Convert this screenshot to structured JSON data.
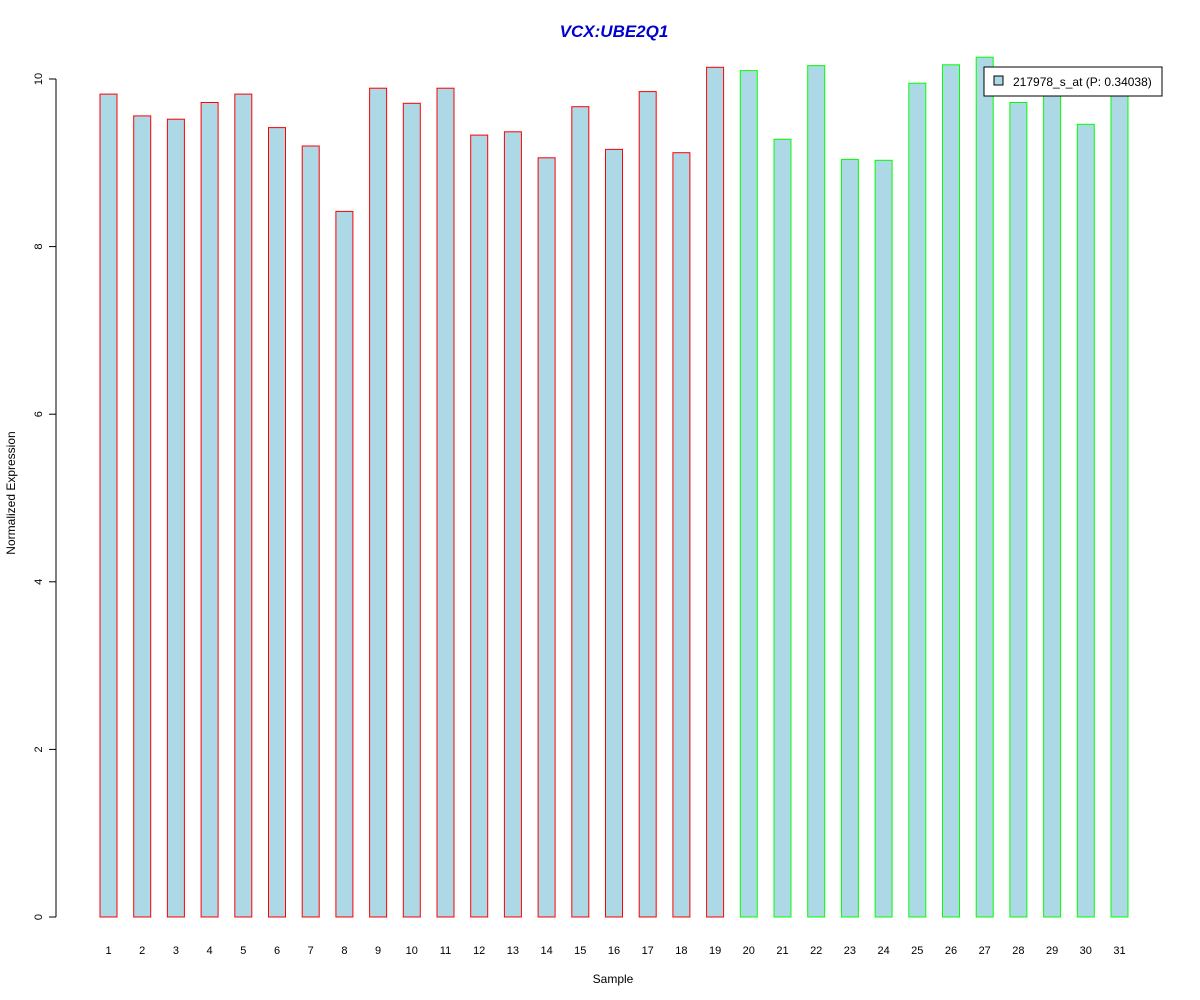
{
  "chart_data": {
    "type": "bar",
    "title": "VCX:UBE2Q1",
    "xlabel": "Sample",
    "ylabel": "Normalized Expression",
    "categories": [
      "1",
      "2",
      "3",
      "4",
      "5",
      "6",
      "7",
      "8",
      "9",
      "10",
      "11",
      "12",
      "13",
      "14",
      "15",
      "16",
      "17",
      "18",
      "19",
      "20",
      "21",
      "22",
      "23",
      "24",
      "25",
      "26",
      "27",
      "28",
      "29",
      "30",
      "31"
    ],
    "series": [
      {
        "name": "217978_s_at (P: 0.34038)",
        "values": [
          9.82,
          9.56,
          9.52,
          9.72,
          9.82,
          9.42,
          9.2,
          8.42,
          9.89,
          9.71,
          9.89,
          9.33,
          9.37,
          9.06,
          9.67,
          9.16,
          9.85,
          9.12,
          10.14,
          10.1,
          9.28,
          10.16,
          9.04,
          9.03,
          9.95,
          10.17,
          10.26,
          9.72,
          9.9,
          9.46,
          9.9
        ]
      }
    ],
    "group_outline": [
      "red",
      "red",
      "red",
      "red",
      "red",
      "red",
      "red",
      "red",
      "red",
      "red",
      "red",
      "red",
      "red",
      "red",
      "red",
      "red",
      "red",
      "red",
      "red",
      "green",
      "green",
      "green",
      "green",
      "green",
      "green",
      "green",
      "green",
      "green",
      "green",
      "green",
      "green"
    ],
    "yticks": [
      0,
      2,
      4,
      6,
      8,
      10
    ],
    "ylim": [
      0,
      10.3
    ],
    "grid": false,
    "legend_position": "top-right",
    "colors": {
      "bar_fill": "#add8e6",
      "outline_group1": "#ff0000",
      "outline_group2": "#00ff00",
      "title": "#0000cc",
      "axis": "#000000"
    }
  }
}
